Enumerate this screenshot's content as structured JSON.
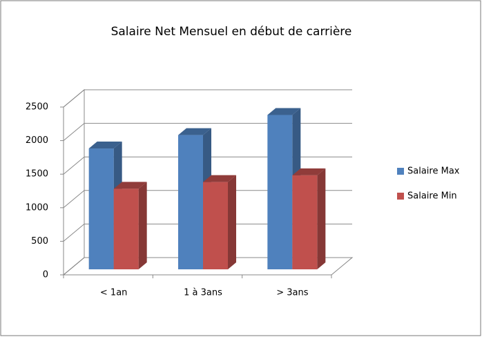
{
  "chart_data": {
    "type": "bar3d",
    "title": "Salaire Net Mensuel en début de carrière",
    "categories": [
      "< 1an",
      "1 à 3ans",
      "> 3ans"
    ],
    "series": [
      {
        "name": "Salaire Max",
        "color": "#4f81bd",
        "values": [
          1800,
          2000,
          2300
        ]
      },
      {
        "name": "Salaire Min",
        "color": "#c0504d",
        "values": [
          1200,
          1300,
          1400
        ]
      }
    ],
    "ylim": [
      0,
      2500
    ],
    "yticks": [
      0,
      500,
      1000,
      1500,
      2000,
      2500
    ],
    "grid": true,
    "legend": "right"
  }
}
